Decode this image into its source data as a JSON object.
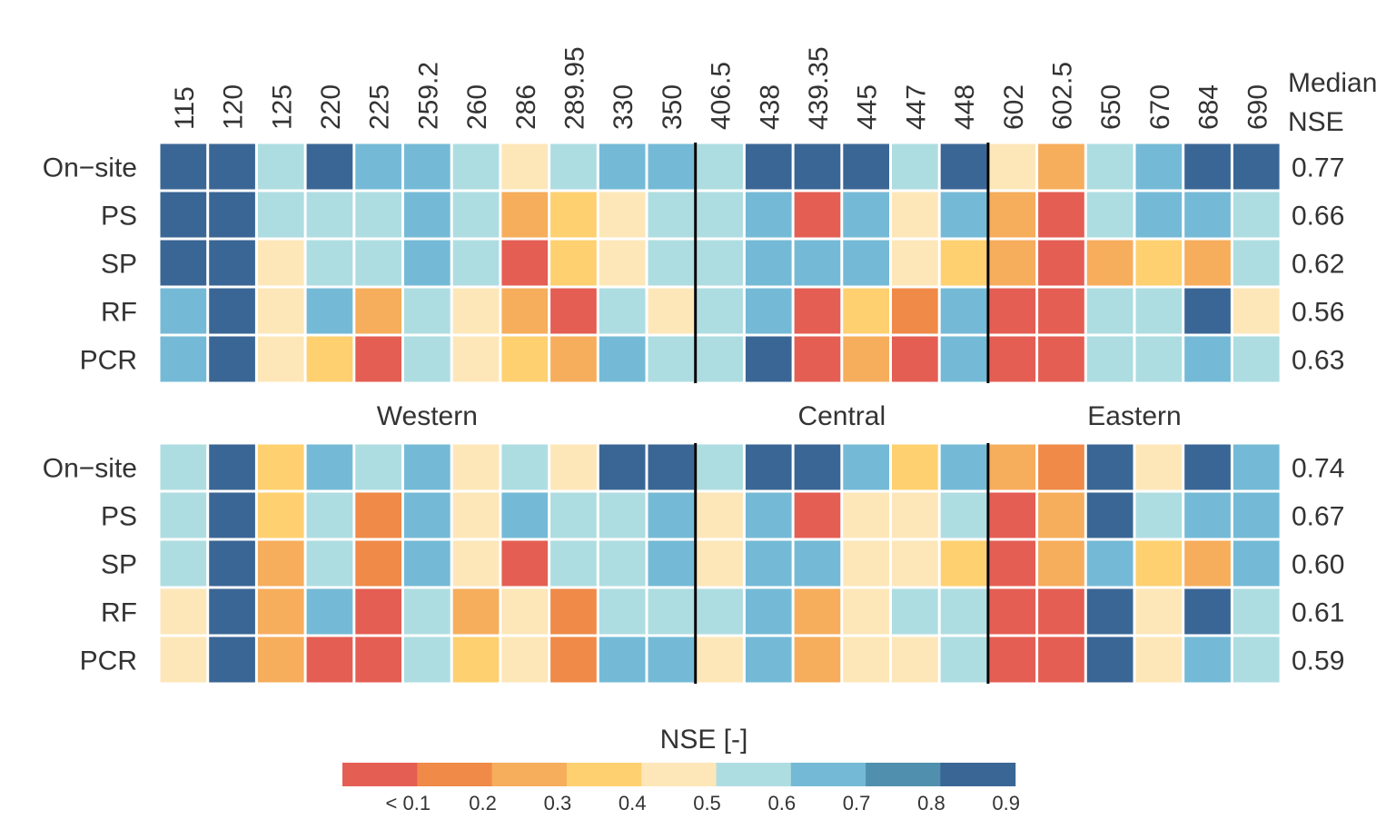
{
  "chart_data": {
    "type": "heatmap",
    "columns": [
      "115",
      "120",
      "125",
      "220",
      "225",
      "259.2",
      "260",
      "286",
      "289.95",
      "330",
      "350",
      "406.5",
      "438",
      "439.35",
      "445",
      "447",
      "448",
      "602",
      "602.5",
      "650",
      "670",
      "684",
      "690"
    ],
    "rows": [
      "On−site",
      "PS",
      "SP",
      "RF",
      "PCR"
    ],
    "median_header": [
      "Median",
      "NSE"
    ],
    "regions": [
      {
        "name": "Western",
        "start": 0,
        "end": 10
      },
      {
        "name": "Central",
        "start": 11,
        "end": 16
      },
      {
        "name": "Eastern",
        "start": 17,
        "end": 22
      }
    ],
    "panels": [
      {
        "values": [
          [
            0.9,
            0.9,
            0.6,
            0.9,
            0.7,
            0.7,
            0.6,
            0.5,
            0.6,
            0.7,
            0.7,
            0.6,
            0.9,
            0.9,
            0.9,
            0.6,
            0.9,
            0.5,
            0.3,
            0.6,
            0.7,
            0.9,
            0.9
          ],
          [
            0.9,
            0.9,
            0.6,
            0.6,
            0.6,
            0.7,
            0.6,
            0.3,
            0.4,
            0.5,
            0.6,
            0.6,
            0.7,
            0.0,
            0.7,
            0.5,
            0.7,
            0.3,
            0.0,
            0.6,
            0.7,
            0.7,
            0.6
          ],
          [
            0.9,
            0.9,
            0.5,
            0.6,
            0.6,
            0.7,
            0.6,
            0.1,
            0.4,
            0.5,
            0.6,
            0.6,
            0.7,
            0.7,
            0.7,
            0.5,
            0.4,
            0.3,
            0.0,
            0.3,
            0.4,
            0.3,
            0.6
          ],
          [
            0.7,
            0.9,
            0.5,
            0.7,
            0.3,
            0.6,
            0.5,
            0.3,
            0.1,
            0.6,
            0.5,
            0.6,
            0.7,
            0.1,
            0.4,
            0.2,
            0.7,
            0.0,
            0.0,
            0.6,
            0.6,
            0.9,
            0.5
          ],
          [
            0.7,
            0.9,
            0.5,
            0.4,
            0.0,
            0.6,
            0.5,
            0.4,
            0.3,
            0.7,
            0.6,
            0.6,
            0.9,
            0.0,
            0.3,
            0.1,
            0.7,
            0.0,
            0.0,
            0.6,
            0.6,
            0.7,
            0.6
          ]
        ],
        "medians": [
          "0.77",
          "0.66",
          "0.62",
          "0.56",
          "0.63"
        ]
      },
      {
        "values": [
          [
            0.6,
            0.9,
            0.4,
            0.7,
            0.6,
            0.7,
            0.5,
            0.6,
            0.5,
            0.9,
            0.9,
            0.6,
            0.9,
            0.9,
            0.7,
            0.4,
            0.7,
            0.3,
            0.2,
            0.9,
            0.5,
            0.9,
            0.7
          ],
          [
            0.6,
            0.9,
            0.4,
            0.6,
            0.2,
            0.7,
            0.5,
            0.7,
            0.6,
            0.6,
            0.7,
            0.5,
            0.7,
            0.0,
            0.5,
            0.5,
            0.6,
            0.0,
            0.3,
            0.9,
            0.6,
            0.7,
            0.7
          ],
          [
            0.6,
            0.9,
            0.3,
            0.6,
            0.2,
            0.7,
            0.5,
            0.1,
            0.6,
            0.6,
            0.7,
            0.5,
            0.7,
            0.7,
            0.5,
            0.5,
            0.4,
            0.0,
            0.3,
            0.7,
            0.4,
            0.3,
            0.7
          ],
          [
            0.5,
            0.9,
            0.3,
            0.7,
            0.0,
            0.6,
            0.3,
            0.5,
            0.2,
            0.6,
            0.6,
            0.6,
            0.7,
            0.3,
            0.5,
            0.6,
            0.6,
            0.0,
            0.0,
            0.9,
            0.5,
            0.9,
            0.6
          ],
          [
            0.5,
            0.9,
            0.3,
            0.1,
            0.0,
            0.6,
            0.4,
            0.5,
            0.2,
            0.7,
            0.7,
            0.5,
            0.7,
            0.3,
            0.5,
            0.5,
            0.6,
            0.0,
            0.0,
            0.9,
            0.5,
            0.7,
            0.6
          ]
        ],
        "medians": [
          "0.74",
          "0.67",
          "0.60",
          "0.61",
          "0.59"
        ]
      }
    ],
    "legend": {
      "title": "NSE [-]",
      "colors": [
        "#e45e53",
        "#ef8a48",
        "#f6ad5c",
        "#fed070",
        "#fde7b9",
        "#aedde1",
        "#74bad6",
        "#508fad",
        "#3a6695"
      ],
      "labels": [
        "< 0.1",
        "0.2",
        "0.3",
        "0.4",
        "0.5",
        "0.6",
        "0.7",
        "0.8",
        "0.9"
      ]
    }
  }
}
